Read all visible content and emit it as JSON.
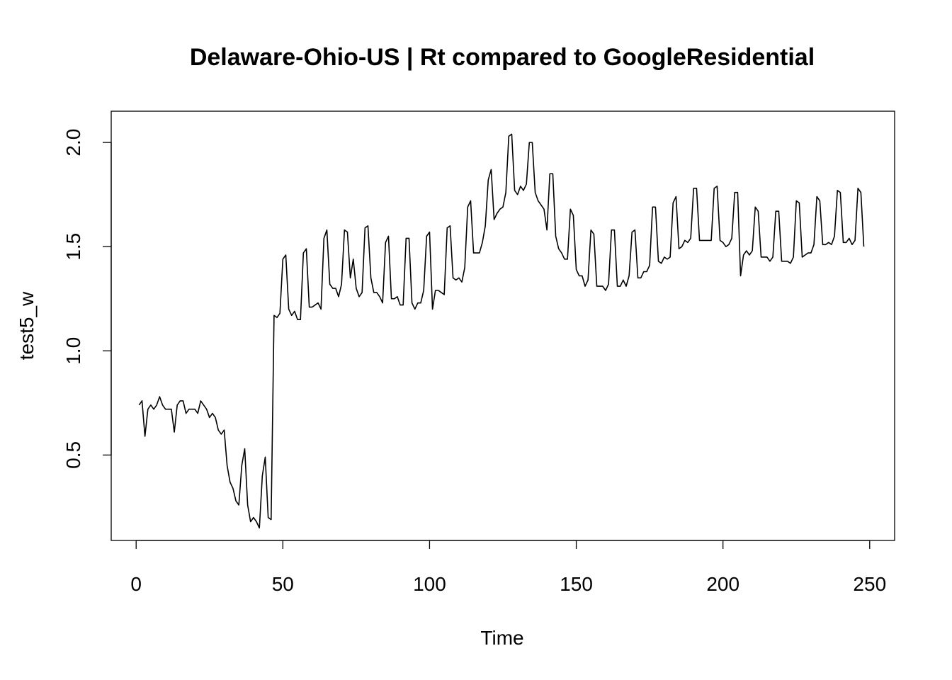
{
  "chart_data": {
    "type": "line",
    "title": "Delaware-Ohio-US | Rt compared to GoogleResidential",
    "xlabel": "Time",
    "ylabel": "test5_w",
    "xlim": [
      -8.5,
      258.5
    ],
    "ylim": [
      0.09,
      2.15
    ],
    "xticks": [
      0,
      50,
      100,
      150,
      200,
      250
    ],
    "xtick_labels": [
      "0",
      "50",
      "100",
      "150",
      "200",
      "250"
    ],
    "yticks": [
      0.5,
      1.0,
      1.5,
      2.0
    ],
    "ytick_labels": [
      "0.5",
      "1.0",
      "1.5",
      "2.0"
    ],
    "grid": false,
    "legend": "none",
    "line_color": "#000000",
    "x": [
      1,
      2,
      3,
      4,
      5,
      6,
      7,
      8,
      9,
      10,
      11,
      12,
      13,
      14,
      15,
      16,
      17,
      18,
      19,
      20,
      21,
      22,
      23,
      24,
      25,
      26,
      27,
      28,
      29,
      30,
      31,
      32,
      33,
      34,
      35,
      36,
      37,
      38,
      39,
      40,
      41,
      42,
      43,
      44,
      45,
      46,
      47,
      48,
      49,
      50,
      51,
      52,
      53,
      54,
      55,
      56,
      57,
      58,
      59,
      60,
      61,
      62,
      63,
      64,
      65,
      66,
      67,
      68,
      69,
      70,
      71,
      72,
      73,
      74,
      75,
      76,
      77,
      78,
      79,
      80,
      81,
      82,
      83,
      84,
      85,
      86,
      87,
      88,
      89,
      90,
      91,
      92,
      93,
      94,
      95,
      96,
      97,
      98,
      99,
      100,
      101,
      102,
      103,
      104,
      105,
      106,
      107,
      108,
      109,
      110,
      111,
      112,
      113,
      114,
      115,
      116,
      117,
      118,
      119,
      120,
      121,
      122,
      123,
      124,
      125,
      126,
      127,
      128,
      129,
      130,
      131,
      132,
      133,
      134,
      135,
      136,
      137,
      138,
      139,
      140,
      141,
      142,
      143,
      144,
      145,
      146,
      147,
      148,
      149,
      150,
      151,
      152,
      153,
      154,
      155,
      156,
      157,
      158,
      159,
      160,
      161,
      162,
      163,
      164,
      165,
      166,
      167,
      168,
      169,
      170,
      171,
      172,
      173,
      174,
      175,
      176,
      177,
      178,
      179,
      180,
      181,
      182,
      183,
      184,
      185,
      186,
      187,
      188,
      189,
      190,
      191,
      192,
      193,
      194,
      195,
      196,
      197,
      198,
      199,
      200,
      201,
      202,
      203,
      204,
      205,
      206,
      207,
      208,
      209,
      210,
      211,
      212,
      213,
      214,
      215,
      216,
      217,
      218,
      219,
      220,
      221,
      222,
      223,
      224,
      225,
      226,
      227,
      228,
      229,
      230,
      231,
      232,
      233,
      234,
      235,
      236,
      237,
      238,
      239,
      240,
      241,
      242,
      243,
      244,
      245,
      246,
      247,
      248
    ],
    "y": [
      0.74,
      0.76,
      0.59,
      0.72,
      0.74,
      0.72,
      0.74,
      0.78,
      0.74,
      0.72,
      0.72,
      0.72,
      0.61,
      0.74,
      0.76,
      0.76,
      0.7,
      0.72,
      0.72,
      0.72,
      0.7,
      0.76,
      0.74,
      0.72,
      0.68,
      0.7,
      0.68,
      0.62,
      0.6,
      0.62,
      0.45,
      0.37,
      0.34,
      0.28,
      0.26,
      0.45,
      0.53,
      0.26,
      0.18,
      0.2,
      0.18,
      0.15,
      0.4,
      0.49,
      0.2,
      0.19,
      1.17,
      1.16,
      1.18,
      1.44,
      1.46,
      1.2,
      1.17,
      1.19,
      1.15,
      1.15,
      1.47,
      1.49,
      1.21,
      1.21,
      1.22,
      1.23,
      1.2,
      1.54,
      1.58,
      1.32,
      1.3,
      1.3,
      1.26,
      1.32,
      1.58,
      1.57,
      1.35,
      1.44,
      1.3,
      1.26,
      1.28,
      1.59,
      1.6,
      1.35,
      1.28,
      1.28,
      1.26,
      1.23,
      1.52,
      1.55,
      1.25,
      1.25,
      1.26,
      1.22,
      1.22,
      1.54,
      1.54,
      1.23,
      1.2,
      1.23,
      1.23,
      1.29,
      1.55,
      1.57,
      1.2,
      1.29,
      1.29,
      1.28,
      1.27,
      1.59,
      1.6,
      1.35,
      1.34,
      1.35,
      1.33,
      1.4,
      1.69,
      1.72,
      1.47,
      1.47,
      1.47,
      1.52,
      1.6,
      1.82,
      1.87,
      1.63,
      1.66,
      1.68,
      1.69,
      1.76,
      2.03,
      2.04,
      1.77,
      1.75,
      1.79,
      1.77,
      1.8,
      2.0,
      2.0,
      1.76,
      1.72,
      1.7,
      1.68,
      1.58,
      1.85,
      1.85,
      1.55,
      1.49,
      1.47,
      1.44,
      1.44,
      1.68,
      1.65,
      1.39,
      1.36,
      1.36,
      1.31,
      1.34,
      1.58,
      1.56,
      1.31,
      1.31,
      1.31,
      1.29,
      1.32,
      1.58,
      1.58,
      1.31,
      1.31,
      1.34,
      1.31,
      1.36,
      1.57,
      1.58,
      1.35,
      1.35,
      1.38,
      1.38,
      1.41,
      1.69,
      1.69,
      1.43,
      1.42,
      1.45,
      1.44,
      1.45,
      1.71,
      1.74,
      1.49,
      1.5,
      1.53,
      1.52,
      1.54,
      1.78,
      1.78,
      1.53,
      1.53,
      1.53,
      1.53,
      1.53,
      1.78,
      1.79,
      1.53,
      1.52,
      1.5,
      1.51,
      1.54,
      1.76,
      1.76,
      1.36,
      1.46,
      1.48,
      1.46,
      1.48,
      1.69,
      1.67,
      1.45,
      1.45,
      1.45,
      1.43,
      1.45,
      1.67,
      1.67,
      1.43,
      1.43,
      1.43,
      1.42,
      1.45,
      1.72,
      1.71,
      1.45,
      1.46,
      1.47,
      1.47,
      1.51,
      1.74,
      1.72,
      1.51,
      1.51,
      1.52,
      1.51,
      1.55,
      1.77,
      1.76,
      1.52,
      1.52,
      1.54,
      1.51,
      1.53,
      1.78,
      1.76,
      1.5
    ]
  }
}
